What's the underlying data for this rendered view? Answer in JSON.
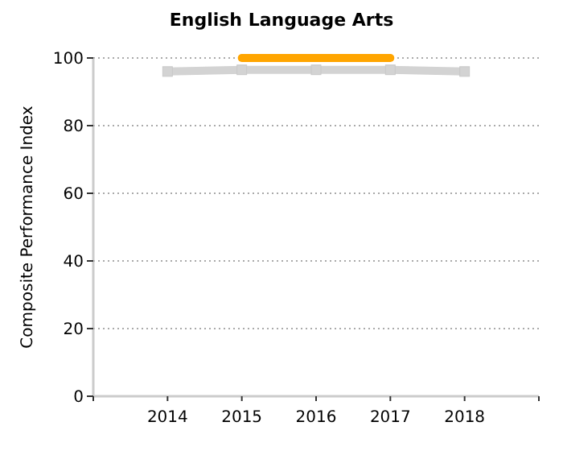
{
  "chart_data": {
    "type": "line",
    "title": "English Language Arts",
    "ylabel": "Composite Performance Index",
    "xlim": [
      2013,
      2019
    ],
    "xticks": [
      {
        "value": 2013,
        "label": null
      },
      2014,
      2015,
      2016,
      2017,
      2018,
      {
        "value": 2019,
        "label": null
      }
    ],
    "ylim": [
      0,
      100
    ],
    "yticks": [
      0,
      20,
      40,
      60,
      80,
      100
    ],
    "grid": "y",
    "series": [
      {
        "color": "#d3d3d3",
        "x": [
          2014,
          2015,
          2016,
          2017,
          2018
        ],
        "values": [
          96,
          96.5,
          96.5,
          96.5,
          96
        ],
        "marker": "square"
      },
      {
        "color": "#ffa500",
        "x": [
          2015,
          2016,
          2017
        ],
        "values": [
          100,
          100,
          100
        ],
        "marker": "none"
      }
    ]
  }
}
